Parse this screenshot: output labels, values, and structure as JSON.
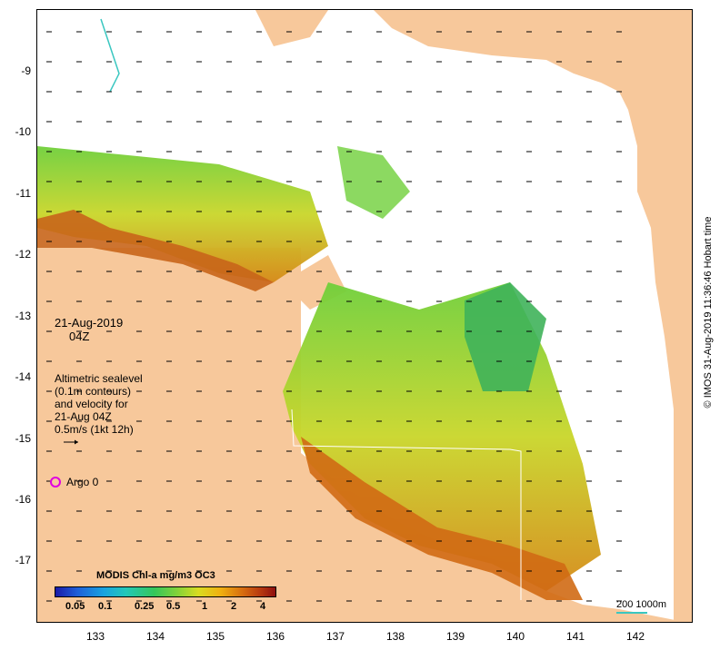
{
  "map": {
    "y_axis_labels": [
      "-9",
      "-10",
      "-11",
      "-12",
      "-13",
      "-14",
      "-15",
      "-16",
      "-17"
    ],
    "x_axis_labels": [
      "133",
      "134",
      "135",
      "136",
      "137",
      "138",
      "139",
      "140",
      "141",
      "142"
    ],
    "colors": {
      "land": "#f7c89b",
      "no_data": "#ffffff",
      "contour": "#3ac7c0"
    }
  },
  "date_block": {
    "line1": "21-Aug-2019",
    "line2": "04Z"
  },
  "altimetric_block": {
    "lines": [
      "Altimetric sealevel",
      "(0.1m contours)",
      "and velocity for",
      "21-Aug 04Z",
      "0.5m/s (1kt 12h)"
    ]
  },
  "argo": {
    "label": "Argo 0",
    "marker_color": "#e000e0"
  },
  "colorbar": {
    "title": "MODIS Chl-a mg/m3 OC3",
    "tick_labels": [
      "0.05",
      "0.1",
      "0.25",
      "0.5",
      "1",
      "2",
      "4"
    ]
  },
  "scale": {
    "label": "200  1000m"
  },
  "side_stamp": {
    "text": "© IMOS 31-Aug-2019 11:36:46 Hobart time"
  }
}
